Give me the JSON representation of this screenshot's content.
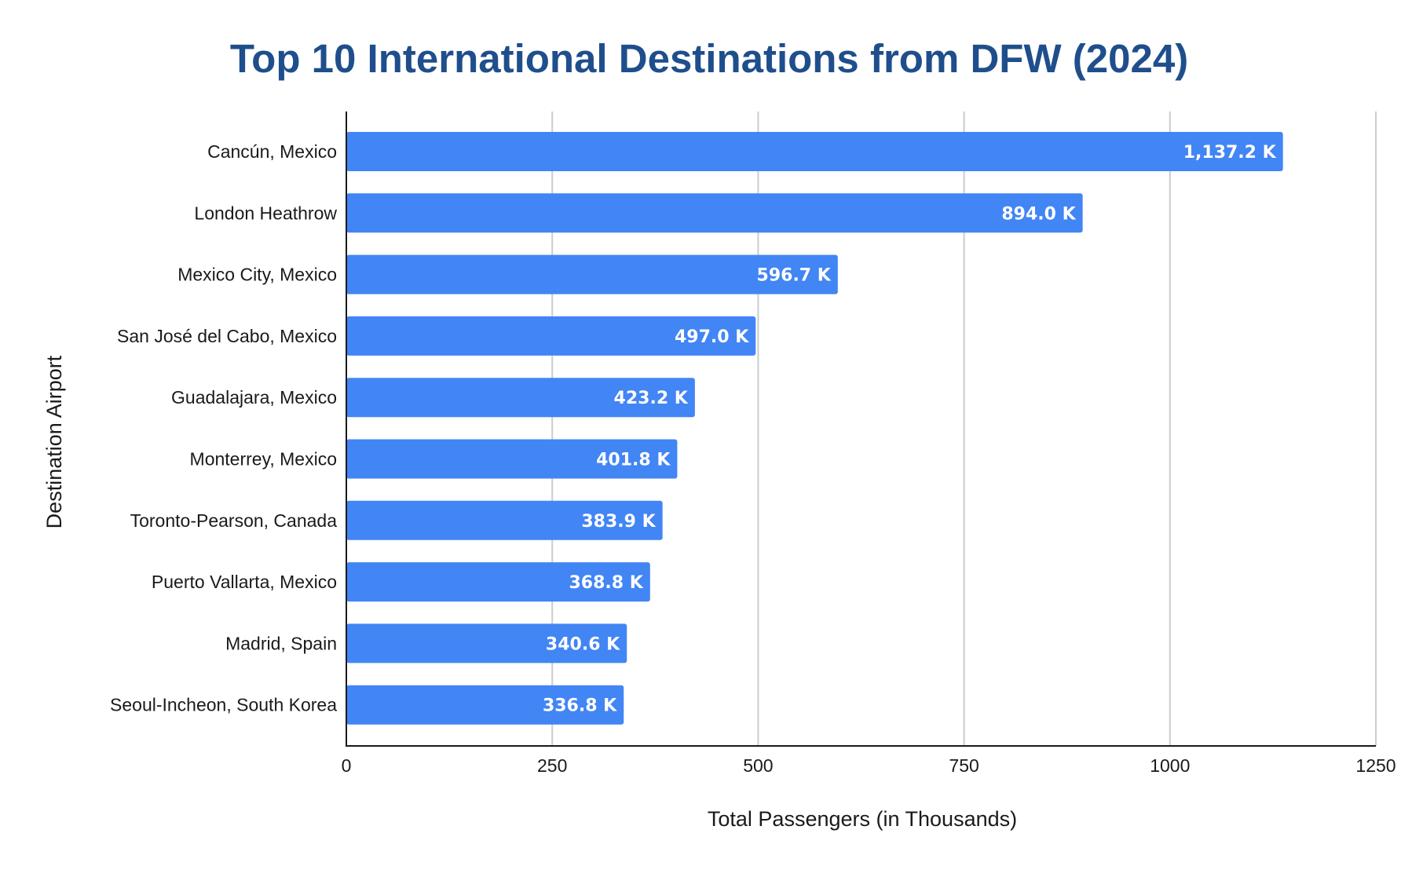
{
  "chart_data": {
    "type": "bar",
    "orientation": "horizontal",
    "title": "Top 10 International Destinations from DFW (2024)",
    "xlabel": "Total Passengers (in Thousands)",
    "ylabel": "Destination Airport",
    "categories": [
      "Cancún, Mexico",
      "London Heathrow",
      "Mexico City, Mexico",
      "San José del Cabo, Mexico",
      "Guadalajara, Mexico",
      "Monterrey, Mexico",
      "Toronto-Pearson, Canada",
      "Puerto Vallarta, Mexico",
      "Madrid, Spain",
      "Seoul-Incheon, South Korea"
    ],
    "values": [
      1137.2,
      894.0,
      596.7,
      497.0,
      423.2,
      401.8,
      383.9,
      368.8,
      340.6,
      336.8
    ],
    "data_labels": [
      "1,137.2 K",
      "894.0 K",
      "596.7 K",
      "497.0 K",
      "423.2 K",
      "401.8 K",
      "383.9 K",
      "368.8 K",
      "340.6 K",
      "336.8 K"
    ],
    "xlim": [
      0,
      1250
    ],
    "x_ticks": [
      0,
      250,
      500,
      750,
      1000,
      1250
    ],
    "x_tick_labels": [
      "0",
      "250",
      "500",
      "750",
      "1000",
      "1250"
    ],
    "grid": "vertical",
    "legend": "none",
    "colors": {
      "bar": "#4285F4",
      "title": "#1F4E8C",
      "grid": "#CCCCCC",
      "axis": "#1A1A1A",
      "data_label": "#FFFFFF"
    }
  }
}
